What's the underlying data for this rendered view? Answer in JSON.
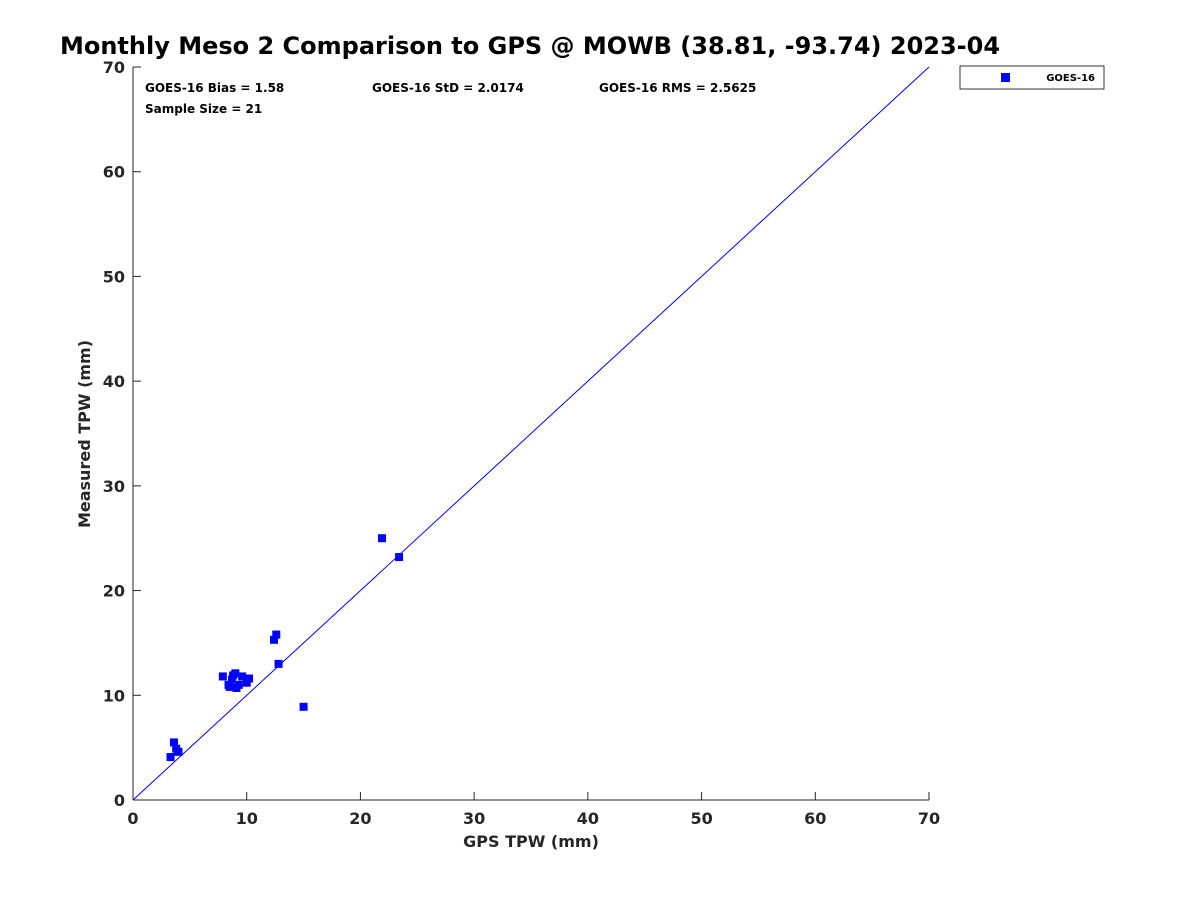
{
  "chart_data": {
    "type": "scatter",
    "title": "Monthly Meso 2 Comparison to GPS @ MOWB (38.81, -93.74) 2023-04",
    "xlabel": "GPS TPW (mm)",
    "ylabel": "Measured TPW (mm)",
    "xlim": [
      0,
      70
    ],
    "ylim": [
      0,
      70
    ],
    "xticks": [
      0,
      10,
      20,
      30,
      40,
      50,
      60,
      70
    ],
    "yticks": [
      0,
      10,
      20,
      30,
      40,
      50,
      60,
      70
    ],
    "grid": false,
    "legend_position": "outside-top-right",
    "reference_line": {
      "x": [
        0,
        70
      ],
      "y": [
        0,
        70
      ],
      "color": "#0000ff"
    },
    "series": [
      {
        "name": "GOES-16",
        "marker": "square",
        "color": "#0000ff",
        "points": [
          [
            3.3,
            4.1
          ],
          [
            3.6,
            5.5
          ],
          [
            3.8,
            4.9
          ],
          [
            4.0,
            4.6
          ],
          [
            7.9,
            11.8
          ],
          [
            8.4,
            11.0
          ],
          [
            8.5,
            10.8
          ],
          [
            8.7,
            11.5
          ],
          [
            9.0,
            12.1
          ],
          [
            9.1,
            10.7
          ],
          [
            9.3,
            11.0
          ],
          [
            9.6,
            11.8
          ],
          [
            10.0,
            11.2
          ],
          [
            10.2,
            11.6
          ],
          [
            12.4,
            15.3
          ],
          [
            12.6,
            15.8
          ],
          [
            12.8,
            13.0
          ],
          [
            15.0,
            8.9
          ],
          [
            21.9,
            25.0
          ],
          [
            23.4,
            23.2
          ],
          [
            8.8,
            11.9
          ]
        ]
      }
    ],
    "stats": {
      "bias": "GOES-16 Bias = 1.58",
      "std": "GOES-16 StD = 2.0174",
      "rms": "GOES-16 RMS = 2.5625",
      "sample_size": "Sample Size = 21"
    }
  }
}
